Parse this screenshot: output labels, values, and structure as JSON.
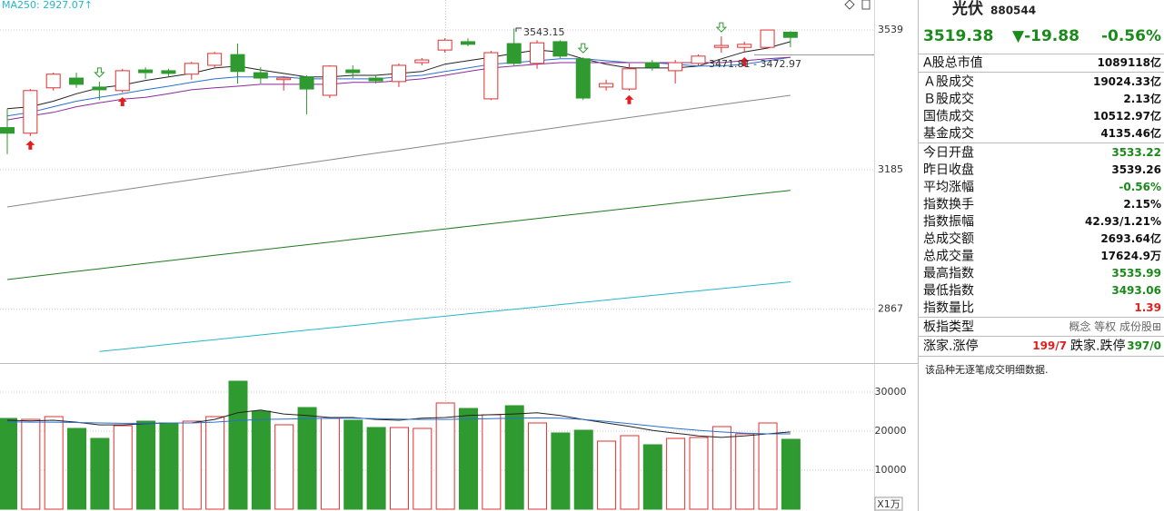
{
  "chart_data": [
    {
      "type": "candlestick",
      "ma_label": "MA250: 2927.07↑",
      "ma_label_color": "#22b8c8",
      "categories": [
        null,
        null,
        null,
        null,
        null,
        null,
        null,
        null,
        null,
        null,
        null,
        null,
        null,
        null,
        null,
        null,
        null,
        null,
        null,
        null,
        null,
        null,
        null,
        null,
        null,
        null,
        null,
        null,
        null,
        null,
        null,
        null,
        null,
        null,
        null
      ],
      "open": [
        3288,
        3274,
        3388,
        3413,
        3390,
        3381,
        3434,
        3432,
        3423,
        3446,
        3474,
        3427,
        3409,
        3416,
        3369,
        3434,
        3413,
        3404,
        3453,
        3486,
        3508,
        3360,
        3503,
        3451,
        3508,
        3463,
        3390,
        3385,
        3453,
        3432,
        3451,
        3493,
        3493,
        3493,
        3533.22
      ],
      "high": [
        3335,
        3385,
        3427,
        3427,
        3404,
        3437,
        3441,
        3437,
        3455,
        3481,
        3503,
        3441,
        3418,
        3420,
        3446,
        3446,
        3420,
        3451,
        3465,
        3517,
        3517,
        3484,
        3543.15,
        3512,
        3512,
        3467,
        3409,
        3451,
        3460,
        3460,
        3474,
        3522,
        3508,
        3539,
        3535.99
      ],
      "low": [
        3223,
        3267,
        3381,
        3388,
        3357,
        3376,
        3411,
        3418,
        3409,
        3439,
        3399,
        3399,
        3381,
        3321,
        3362,
        3413,
        3399,
        3390,
        3446,
        3479,
        3496,
        3357,
        3446,
        3437,
        3465,
        3357,
        3381,
        3381,
        3432,
        3399,
        3446,
        3479,
        3479,
        3489,
        3493.06
      ],
      "close": [
        3274,
        3381,
        3423,
        3397,
        3383,
        3432,
        3427,
        3425,
        3451,
        3477,
        3430,
        3413,
        3413,
        3385,
        3444,
        3427,
        3406,
        3446,
        3460,
        3512,
        3501,
        3479,
        3451,
        3505,
        3470,
        3362,
        3399,
        3437,
        3441,
        3453,
        3470,
        3498,
        3501,
        3539,
        3519.38
      ],
      "up_color": "#e03030",
      "down_color": "#2f9a2f",
      "lines": [
        {
          "color": "#222222",
          "values": [
            3335,
            3340,
            3354,
            3373,
            3388,
            3395,
            3407,
            3416,
            3425,
            3439,
            3444,
            3434,
            3425,
            3416,
            3416,
            3420,
            3420,
            3425,
            3430,
            3449,
            3458,
            3467,
            3477,
            3486,
            3481,
            3463,
            3449,
            3439,
            3439,
            3439,
            3444,
            3463,
            3481,
            3491,
            3508
          ]
        },
        {
          "color": "#2a6fd0",
          "values": [
            3317,
            3326,
            3340,
            3354,
            3364,
            3373,
            3383,
            3392,
            3402,
            3411,
            3416,
            3416,
            3416,
            3411,
            3411,
            3411,
            3411,
            3416,
            3420,
            3430,
            3439,
            3449,
            3453,
            3458,
            3463,
            3463,
            3458,
            3453,
            3453,
            3449,
            3444,
            3444,
            3449,
            3458,
            3467
          ]
        },
        {
          "color": "#8a2a9a",
          "values": [
            3307,
            3317,
            3326,
            3340,
            3350,
            3359,
            3364,
            3373,
            3383,
            3388,
            3392,
            3397,
            3397,
            3397,
            3397,
            3402,
            3402,
            3406,
            3411,
            3420,
            3430,
            3439,
            3444,
            3449,
            3453,
            3453,
            3453,
            3453,
            3453,
            3453,
            3453,
            3453,
            3458,
            3463,
            3467
          ]
        },
        {
          "color": "#888888",
          "values": [
            3097,
            3105,
            3113,
            3121,
            3129,
            3137,
            3145,
            3153,
            3161,
            3169,
            3177,
            3185,
            3193,
            3201,
            3209,
            3217,
            3225,
            3233,
            3241,
            3249,
            3257,
            3265,
            3273,
            3281,
            3289,
            3297,
            3305,
            3313,
            3321,
            3329,
            3337,
            3345,
            3353,
            3361,
            3369
          ]
        },
        {
          "color": "#1e7a1e",
          "values": [
            2932,
            2938,
            2944,
            2950,
            2956,
            2962,
            2968,
            2974,
            2980,
            2986,
            2992,
            2998,
            3004,
            3010,
            3016,
            3022,
            3028,
            3034,
            3040,
            3046,
            3052,
            3058,
            3064,
            3070,
            3076,
            3082,
            3088,
            3094,
            3100,
            3106,
            3112,
            3118,
            3124,
            3130,
            3136
          ]
        },
        {
          "color": "#22b8c8",
          "values": [
            null,
            null,
            null,
            null,
            2777,
            2782,
            2787,
            2792,
            2797,
            2802,
            2807,
            2812,
            2817,
            2822,
            2827,
            2832,
            2837,
            2842,
            2847,
            2852,
            2857,
            2862,
            2867,
            2872,
            2877,
            2882,
            2887,
            2892,
            2897,
            2902,
            2907,
            2912,
            2917,
            2922,
            2927
          ]
        }
      ],
      "buy_signals": [
        1,
        5,
        27,
        32
      ],
      "sell_signals": [
        4,
        25,
        31
      ],
      "annotations": [
        "3543.15",
        "3471.81 - 3472.97"
      ],
      "ylim": [
        2753,
        3620
      ],
      "log_scale": true,
      "yticks": [
        3539,
        3185,
        2867
      ],
      "grid": true
    },
    {
      "type": "bar",
      "values": [
        23256,
        23023,
        23721,
        20698,
        18140,
        21395,
        22558,
        22093,
        22558,
        23721,
        32791,
        25116,
        21628,
        26047,
        23256,
        22791,
        20930,
        20930,
        20698,
        27209,
        25814,
        24186,
        26512,
        22093,
        19535,
        20233,
        17442,
        18837,
        16512,
        18140,
        18372,
        21163,
        19302,
        22093,
        17907
      ],
      "up_color": "#e03030",
      "down_color": "#2f9a2f",
      "lines": [
        {
          "color": "#222222",
          "values": [
            22800,
            22600,
            22800,
            22300,
            21600,
            21600,
            21900,
            22100,
            22100,
            23000,
            24700,
            25400,
            24400,
            24000,
            23500,
            23500,
            23000,
            22800,
            23300,
            23500,
            24000,
            24200,
            24400,
            24700,
            24000,
            23000,
            22100,
            21200,
            20200,
            19500,
            18800,
            18400,
            18800,
            19300,
            19800
          ]
        },
        {
          "color": "#2a6fd0",
          "values": [
            22400,
            22300,
            22300,
            22200,
            22100,
            22000,
            22000,
            22100,
            22100,
            22300,
            22700,
            23000,
            23100,
            23200,
            23300,
            23300,
            23200,
            23100,
            23000,
            23000,
            23100,
            23200,
            23300,
            23400,
            23300,
            23000,
            22500,
            21900,
            21300,
            20700,
            20200,
            19800,
            19500,
            19300,
            19300
          ]
        }
      ],
      "unit_label": "X1万",
      "ylim": [
        0,
        37442
      ],
      "yticks": [
        30000,
        20000,
        10000
      ],
      "grid": true
    }
  ],
  "panel": {
    "name": "光伏",
    "code": "880544",
    "price": "3519.38",
    "change": "▼-19.88",
    "pct": "-0.56%",
    "quote_color": "#1a8a1a",
    "sections": [
      [
        {
          "label": "A股总市值",
          "value": "1089118亿"
        }
      ],
      [
        {
          "label": "Ａ股成交",
          "value": "19024.33亿"
        },
        {
          "label": "Ｂ股成交",
          "value": "2.13亿"
        },
        {
          "label": "国债成交",
          "value": "10512.97亿"
        },
        {
          "label": "基金成交",
          "value": "4135.46亿"
        }
      ],
      [
        {
          "label": "今日开盘",
          "value": "3533.22",
          "color": "#1a8a1a"
        },
        {
          "label": "昨日收盘",
          "value": "3539.26"
        },
        {
          "label": "平均涨幅",
          "value": "-0.56%",
          "color": "#1a8a1a"
        },
        {
          "label": "指数换手",
          "value": "2.15%"
        },
        {
          "label": "指数振幅",
          "value": "42.93/1.21%"
        },
        {
          "label": "总成交额",
          "value": "2693.64亿"
        },
        {
          "label": "总成交量",
          "value": "17624.9万"
        },
        {
          "label": "最高指数",
          "value": "3535.99",
          "color": "#1a8a1a"
        },
        {
          "label": "最低指数",
          "value": "3493.06",
          "color": "#1a8a1a"
        },
        {
          "label": "指数量比",
          "value": "1.39",
          "color": "#e02020"
        }
      ],
      [
        {
          "label": "板指类型",
          "value": "概念 等权 成份股⊞",
          "color": "#666666"
        }
      ]
    ],
    "breadth": {
      "up_label": "涨家.涨停",
      "up": "199/7",
      "up_color": "#e02020",
      "down_label": "跌家.跌停",
      "down": "397/0",
      "down_color": "#1a8a1a"
    },
    "note": "该品种无逐笔成交明细数据."
  }
}
